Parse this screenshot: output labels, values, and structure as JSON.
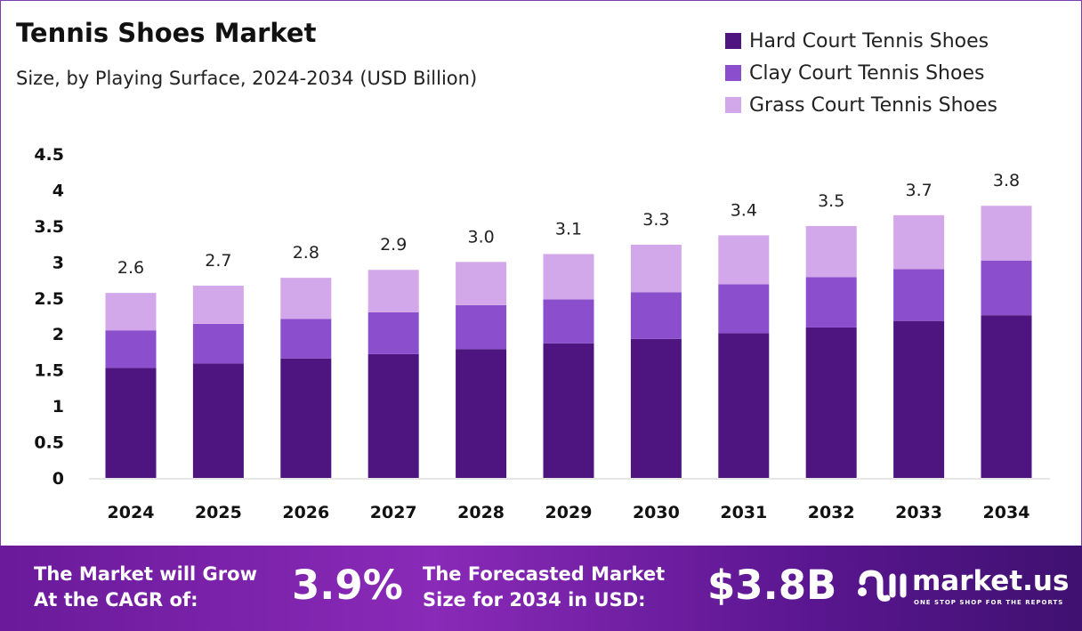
{
  "header": {
    "title": "Tennis Shoes Market",
    "subtitle": "Size, by Playing Surface, 2024-2034 (USD Billion)"
  },
  "chart_data": {
    "type": "stacked-bar",
    "categories": [
      "2024",
      "2025",
      "2026",
      "2027",
      "2028",
      "2029",
      "2030",
      "2031",
      "2032",
      "2033",
      "2034"
    ],
    "series": [
      {
        "name": "Hard Court Tennis Shoes",
        "color": "#4e1580",
        "values": [
          1.53,
          1.59,
          1.66,
          1.72,
          1.79,
          1.87,
          1.93,
          2.01,
          2.09,
          2.18,
          2.26
        ]
      },
      {
        "name": "Clay Court Tennis Shoes",
        "color": "#8b4fce",
        "values": [
          0.52,
          0.55,
          0.55,
          0.58,
          0.61,
          0.61,
          0.65,
          0.68,
          0.7,
          0.72,
          0.76
        ]
      },
      {
        "name": "Grass Court Tennis Shoes",
        "color": "#d3a8ea",
        "values": [
          0.52,
          0.53,
          0.57,
          0.59,
          0.6,
          0.63,
          0.66,
          0.68,
          0.71,
          0.75,
          0.76
        ]
      }
    ],
    "totals": [
      "2.6",
      "2.7",
      "2.8",
      "2.9",
      "3.0",
      "3.1",
      "3.3",
      "3.4",
      "3.5",
      "3.7",
      "3.8"
    ],
    "yticks": [
      "0",
      "0.5",
      "1",
      "1.5",
      "2",
      "2.5",
      "3",
      "3.5",
      "4",
      "4.5"
    ],
    "ylim": [
      0,
      4.5
    ],
    "legend": "top-right",
    "grid": false
  },
  "footer": {
    "cagr_label_1": "The Market will Grow",
    "cagr_label_2": "At the CAGR of:",
    "cagr_value": "3.9%",
    "forecast_label_1": "The Forecasted Market",
    "forecast_label_2": "Size for 2034 in USD:",
    "forecast_value": "$3.8B",
    "brand": "market.us",
    "brand_tagline": "ONE STOP SHOP FOR THE REPORTS"
  }
}
